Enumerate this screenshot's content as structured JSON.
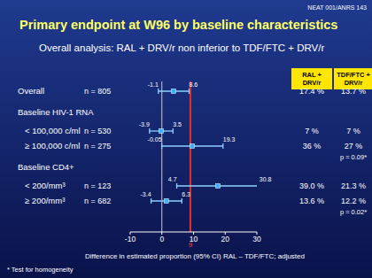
{
  "chart_data": {
    "type": "forest",
    "source": "NEAT 001/ANRS 143",
    "title": "Primary endpoint at W96 by baseline characteristics",
    "subtitle": "Overall analysis: RAL + DRV/r non inferior to TDF/FTC + DRV/r",
    "columns": [
      "RAL + DRV/r",
      "TDF/FTC + DRV/r"
    ],
    "rows": [
      {
        "label": "Overall",
        "n": "n = 805",
        "estimate": 3.7,
        "lower": -1.1,
        "upper": 8.6,
        "ral": "17.4 %",
        "tdf": "13.7 %"
      },
      {
        "heading": "Baseline HIV-1 RNA"
      },
      {
        "label": "< 100,000 c/ml",
        "n": "n = 530",
        "estimate": -0.2,
        "lower": -3.9,
        "upper": 3.5,
        "ral": "7 %",
        "tdf": "7 %"
      },
      {
        "label": "≥ 100,000 c/ml",
        "n": "n = 275",
        "estimate": 9.6,
        "lower": -0.05,
        "upper": 19.3,
        "ral": "36 %",
        "tdf": "27 %",
        "p": "p = 0.09*"
      },
      {
        "heading": "Baseline CD4+"
      },
      {
        "label": "< 200/mm³",
        "n": "n = 123",
        "estimate": 17.7,
        "lower": 4.7,
        "upper": 30.8,
        "ral": "39.0 %",
        "tdf": "21.3 %"
      },
      {
        "label": "≥ 200/mm³",
        "n": "n = 682",
        "estimate": 1.4,
        "lower": -3.4,
        "upper": 6.3,
        "ral": "13.6 %",
        "tdf": "12.2 %",
        "p": "p = 0.02*"
      }
    ],
    "margin": 9,
    "xlim": [
      -10,
      30
    ],
    "xticks": [
      -10,
      0,
      10,
      20,
      30
    ],
    "x_label": "Difference in estimated proportion (95% CI) RAL – TDF/FTC; adjusted",
    "footnote": "* Test for homogeneity"
  }
}
